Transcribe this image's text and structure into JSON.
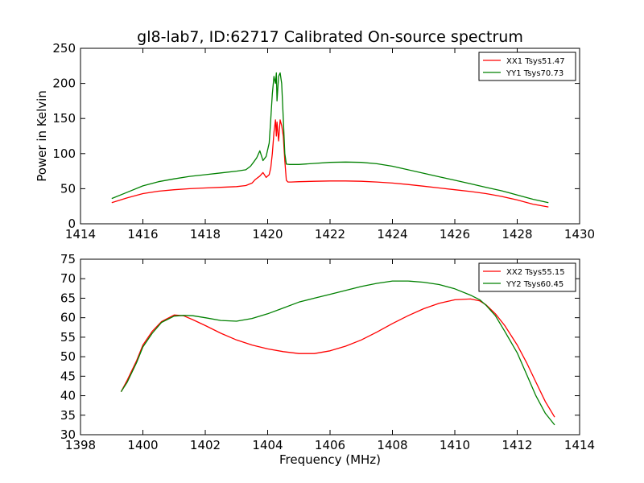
{
  "chart_data": [
    {
      "type": "line",
      "title": "gl8-lab7, ID:62717 Calibrated On-source spectrum",
      "xlabel": "",
      "ylabel": "Power in Kelvin",
      "xlim": [
        1414,
        1430
      ],
      "ylim": [
        0,
        250
      ],
      "xticks": [
        1414,
        1416,
        1418,
        1420,
        1422,
        1424,
        1426,
        1428,
        1430
      ],
      "yticks": [
        0,
        50,
        100,
        150,
        200,
        250
      ],
      "grid": false,
      "legend_position": "top-right",
      "series": [
        {
          "name": "XX1 Tsys51.47",
          "color": "#ff0000",
          "x": [
            1415.0,
            1415.5,
            1416.0,
            1416.5,
            1417.0,
            1417.5,
            1418.0,
            1418.5,
            1419.0,
            1419.3,
            1419.5,
            1419.6,
            1419.75,
            1419.85,
            1419.95,
            1420.05,
            1420.1,
            1420.15,
            1420.2,
            1420.25,
            1420.28,
            1420.3,
            1420.35,
            1420.4,
            1420.45,
            1420.5,
            1420.55,
            1420.6,
            1420.65,
            1420.75,
            1421.0,
            1421.5,
            1422.0,
            1422.5,
            1423.0,
            1423.5,
            1424.0,
            1424.5,
            1425.0,
            1425.5,
            1426.0,
            1426.5,
            1427.0,
            1427.5,
            1428.0,
            1428.5,
            1429.0
          ],
          "y": [
            30,
            37,
            43,
            46.5,
            48.5,
            50,
            51,
            52,
            53,
            54.5,
            58,
            63,
            68,
            73,
            66,
            70,
            80,
            100,
            130,
            148,
            125,
            145,
            118,
            148,
            140,
            125,
            90,
            62,
            59.5,
            59.5,
            60,
            60.5,
            61,
            61,
            60.5,
            59.5,
            58,
            56,
            53.5,
            51,
            48.5,
            46,
            43,
            39,
            34,
            28,
            24
          ]
        },
        {
          "name": "YY1 Tsys70.73",
          "color": "#008000",
          "x": [
            1415.0,
            1415.5,
            1416.0,
            1416.5,
            1417.0,
            1417.5,
            1418.0,
            1418.5,
            1419.0,
            1419.3,
            1419.45,
            1419.55,
            1419.65,
            1419.75,
            1419.85,
            1419.95,
            1420.05,
            1420.1,
            1420.15,
            1420.2,
            1420.25,
            1420.28,
            1420.3,
            1420.35,
            1420.4,
            1420.45,
            1420.5,
            1420.55,
            1420.6,
            1420.7,
            1421.0,
            1421.5,
            1422.0,
            1422.5,
            1423.0,
            1423.5,
            1424.0,
            1424.5,
            1425.0,
            1425.5,
            1426.0,
            1426.5,
            1427.0,
            1427.5,
            1428.0,
            1428.5,
            1429.0
          ],
          "y": [
            36,
            45,
            54,
            60,
            64,
            67.5,
            70,
            72.5,
            75,
            77,
            82,
            88,
            94,
            104,
            90,
            96,
            115,
            150,
            185,
            210,
            200,
            215,
            175,
            210,
            215,
            200,
            150,
            100,
            85,
            84.5,
            84.5,
            86,
            87.5,
            88,
            87.5,
            85.5,
            82,
            77,
            72,
            67,
            62,
            57,
            52,
            47,
            41,
            35,
            30
          ]
        }
      ]
    },
    {
      "type": "line",
      "title": "",
      "xlabel": "Frequency (MHz)",
      "ylabel": "",
      "xlim": [
        1398,
        1414
      ],
      "ylim": [
        30,
        75
      ],
      "xticks": [
        1398,
        1400,
        1402,
        1404,
        1406,
        1408,
        1410,
        1412,
        1414
      ],
      "yticks": [
        30,
        35,
        40,
        45,
        50,
        55,
        60,
        65,
        70,
        75
      ],
      "grid": false,
      "legend_position": "top-right",
      "series": [
        {
          "name": "XX2 Tsys55.15",
          "color": "#ff0000",
          "x": [
            1399.3,
            1399.5,
            1399.8,
            1400.0,
            1400.3,
            1400.6,
            1401.0,
            1401.3,
            1401.6,
            1402.0,
            1402.5,
            1403.0,
            1403.5,
            1404.0,
            1404.5,
            1405.0,
            1405.5,
            1406.0,
            1406.5,
            1407.0,
            1407.5,
            1408.0,
            1408.5,
            1409.0,
            1409.5,
            1410.0,
            1410.5,
            1410.8,
            1411.0,
            1411.3,
            1411.6,
            1412.0,
            1412.3,
            1412.6,
            1412.9,
            1413.2
          ],
          "y": [
            41,
            44,
            49,
            53,
            56.5,
            59,
            60.7,
            60.5,
            59.5,
            58,
            56,
            54.3,
            53,
            52,
            51.3,
            50.8,
            50.8,
            51.5,
            52.7,
            54.3,
            56.3,
            58.5,
            60.5,
            62.3,
            63.7,
            64.6,
            64.8,
            64.3,
            63.3,
            61,
            58,
            53,
            48.5,
            43.5,
            38.5,
            34.5
          ]
        },
        {
          "name": "YY2 Tsys60.45",
          "color": "#008000",
          "x": [
            1399.3,
            1399.5,
            1399.8,
            1400.0,
            1400.3,
            1400.6,
            1401.0,
            1401.3,
            1401.6,
            1402.0,
            1402.5,
            1403.0,
            1403.5,
            1404.0,
            1404.5,
            1405.0,
            1405.5,
            1406.0,
            1406.5,
            1407.0,
            1407.5,
            1408.0,
            1408.5,
            1409.0,
            1409.5,
            1410.0,
            1410.5,
            1410.8,
            1411.0,
            1411.3,
            1411.6,
            1412.0,
            1412.3,
            1412.6,
            1412.9,
            1413.2
          ],
          "y": [
            41,
            43.5,
            48.5,
            52.5,
            56,
            58.8,
            60.4,
            60.6,
            60.5,
            60,
            59.3,
            59.1,
            59.8,
            61,
            62.5,
            64,
            65,
            66,
            67,
            68,
            68.8,
            69.4,
            69.4,
            69.1,
            68.5,
            67.4,
            65.8,
            64.6,
            63.2,
            60.5,
            56.5,
            51,
            45.5,
            40,
            35.5,
            32.5
          ]
        }
      ]
    }
  ]
}
